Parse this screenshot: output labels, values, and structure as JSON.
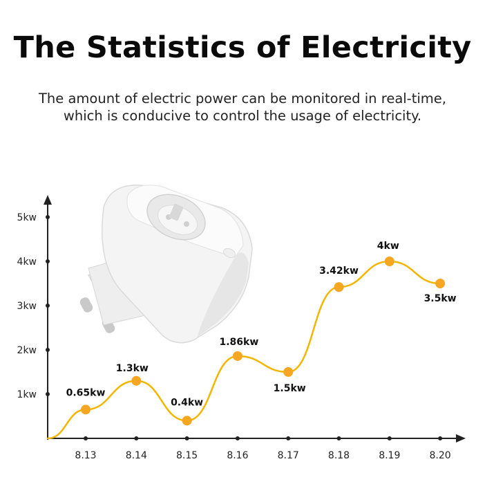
{
  "header": {
    "title": "The Statistics of Electricity",
    "subtitle_line1": "The amount of electric power can be monitored in real-time,",
    "subtitle_line2": "which is conducive to control the usage of electricity."
  },
  "colors": {
    "line": "#f2b600",
    "point": "#f5a623",
    "axis": "#222222",
    "plug_body": "#f3f3f3",
    "plug_shadow": "#d9d9d9"
  },
  "chart_data": {
    "type": "line",
    "title": "",
    "xlabel": "",
    "ylabel": "",
    "categories": [
      "8.13",
      "8.14",
      "8.15",
      "8.16",
      "8.17",
      "8.18",
      "8.19",
      "8.20"
    ],
    "values": [
      0.65,
      1.3,
      0.4,
      1.86,
      1.5,
      3.42,
      4,
      3.5
    ],
    "data_labels": [
      "0.65kw",
      "1.3kw",
      "0.4kw",
      "1.86kw",
      "1.5kw",
      "3.42kw",
      "4kw",
      "3.5kw"
    ],
    "y_ticks": [
      1,
      2,
      3,
      4,
      5
    ],
    "y_tick_labels": [
      "1kw",
      "2kw",
      "3kw",
      "4kw",
      "5kw"
    ],
    "ylim": [
      0,
      5
    ],
    "grid": false,
    "legend": "none",
    "smooth": true
  },
  "decor": {
    "plug_icon": "smart-plug-image"
  }
}
